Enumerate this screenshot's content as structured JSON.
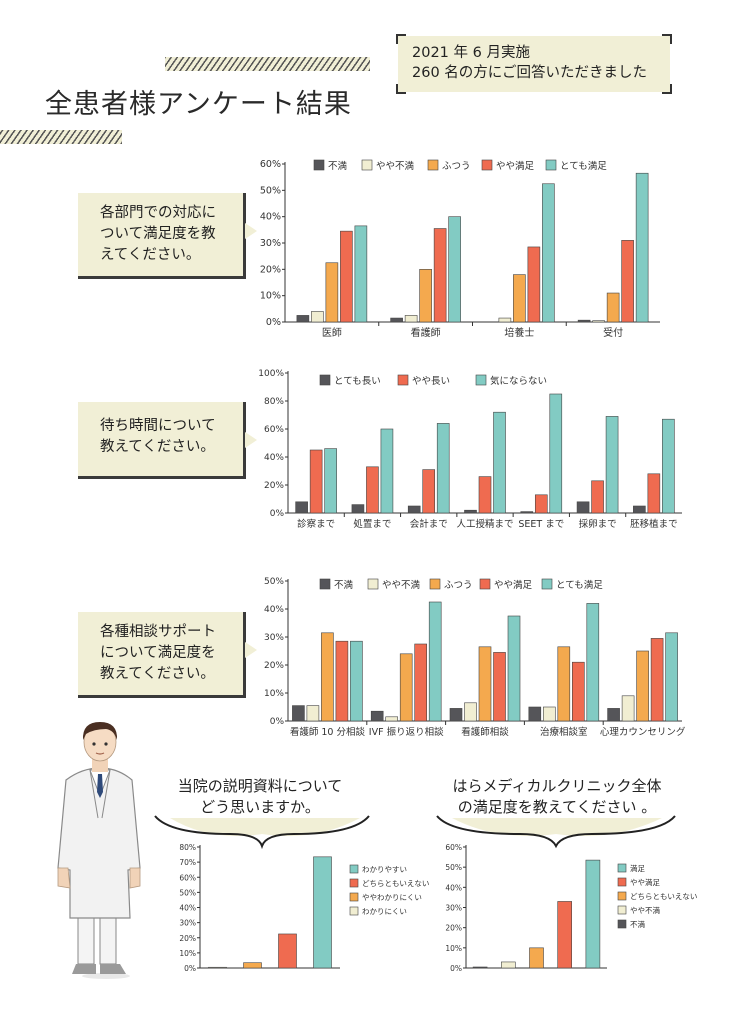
{
  "header": {
    "title": "全患者様アンケート結果",
    "note_line1": "2021 年 6 月実施",
    "note_line2": "260 名の方にご回答いただきました"
  },
  "questions": {
    "q1": [
      "各部門での対応に",
      "ついて満足度を教",
      "えてください。"
    ],
    "q2": [
      "待ち時間について",
      "教えてください。"
    ],
    "q3": [
      "各種相談サポート",
      "について満足度を",
      "教えてください。"
    ],
    "q4": [
      "当院の説明資料について",
      "どう思いますか。"
    ],
    "q5": [
      "はらメディカルクリニック全体",
      "の満足度を教えてください 。"
    ]
  },
  "colors": {
    "dark": "#555559",
    "cream": "#f1eed2",
    "orange": "#f4a94e",
    "red": "#ef6b50",
    "teal": "#82cbc3"
  },
  "icons": [
    "doctor-illustration-icon"
  ],
  "chart_data": [
    {
      "type": "bar",
      "categories": [
        "医師",
        "看護師",
        "培養士",
        "受付"
      ],
      "series": [
        {
          "name": "不満",
          "color": "#555559",
          "values": [
            2.5,
            1.5,
            0,
            0.7
          ]
        },
        {
          "name": "やや不満",
          "color": "#f1eed2",
          "values": [
            4,
            2.5,
            1.5,
            0.5
          ]
        },
        {
          "name": "ふつう",
          "color": "#f4a94e",
          "values": [
            22.5,
            20,
            18,
            11
          ]
        },
        {
          "name": "やや満足",
          "color": "#ef6b50",
          "values": [
            34.5,
            35.5,
            28.5,
            31
          ]
        },
        {
          "name": "とても満足",
          "color": "#82cbc3",
          "values": [
            36.5,
            40,
            52.5,
            56.5
          ]
        }
      ],
      "yticks": [
        "0%",
        "10%",
        "20%",
        "30%",
        "40%",
        "50%",
        "60%"
      ],
      "ylim": [
        0,
        60
      ]
    },
    {
      "type": "bar",
      "categories": [
        "診察まで",
        "処置まで",
        "会計まで",
        "人工授精まで",
        "SEET まで",
        "採卵まで",
        "胚移植まで"
      ],
      "series": [
        {
          "name": "とても長い",
          "color": "#555559",
          "values": [
            8,
            6,
            5,
            2,
            1,
            8,
            5
          ]
        },
        {
          "name": "やや長い",
          "color": "#ef6b50",
          "values": [
            45,
            33,
            31,
            26,
            13,
            23,
            28
          ]
        },
        {
          "name": "気にならない",
          "color": "#82cbc3",
          "values": [
            46,
            60,
            64,
            72,
            85,
            69,
            67
          ]
        }
      ],
      "yticks": [
        "0%",
        "20%",
        "40%",
        "60%",
        "80%",
        "100%"
      ],
      "ylim": [
        0,
        100
      ]
    },
    {
      "type": "bar",
      "categories": [
        "看護師 10 分相談",
        "IVF 振り返り相談",
        "看護師相談",
        "治療相談室",
        "心理カウンセリング"
      ],
      "series": [
        {
          "name": "不満",
          "color": "#555559",
          "values": [
            5.5,
            3.5,
            4.5,
            5,
            4.5
          ]
        },
        {
          "name": "やや不満",
          "color": "#f1eed2",
          "values": [
            5.5,
            1.5,
            6.5,
            5,
            9
          ]
        },
        {
          "name": "ふつう",
          "color": "#f4a94e",
          "values": [
            31.5,
            24,
            26.5,
            26.5,
            25
          ]
        },
        {
          "name": "やや満足",
          "color": "#ef6b50",
          "values": [
            28.5,
            27.5,
            24.5,
            21,
            29.5
          ]
        },
        {
          "name": "とても満足",
          "color": "#82cbc3",
          "values": [
            28.5,
            42.5,
            37.5,
            42,
            31.5
          ]
        }
      ],
      "yticks": [
        "0%",
        "10%",
        "20%",
        "30%",
        "40%",
        "50%"
      ],
      "ylim": [
        0,
        50
      ]
    },
    {
      "type": "bar",
      "categories": [
        "わかりにくい",
        "ややわかりにくい",
        "どちらともいえない",
        "わかりやすい"
      ],
      "series": [
        {
          "name": "わかりにくい",
          "color": "#f1eed2",
          "values": [
            0.5,
            0,
            0,
            0
          ]
        },
        {
          "name": "ややわかりにくい",
          "color": "#f4a94e",
          "values": [
            0,
            3.5,
            0,
            0
          ]
        },
        {
          "name": "どちらともいえない",
          "color": "#ef6b50",
          "values": [
            0,
            0,
            22.5,
            0
          ]
        },
        {
          "name": "わかりやすい",
          "color": "#82cbc3",
          "values": [
            0,
            0,
            0,
            73.5
          ]
        }
      ],
      "legend_order": [
        "わかりやすい",
        "どちらともいえない",
        "ややわかりにくい",
        "わかりにくい"
      ],
      "yticks": [
        "0%",
        "10%",
        "20%",
        "30%",
        "40%",
        "50%",
        "60%",
        "70%",
        "80%"
      ],
      "ylim": [
        0,
        80
      ]
    },
    {
      "type": "bar",
      "categories": [
        "不満",
        "やや不満",
        "どちらともいえない",
        "やや満足",
        "満足"
      ],
      "series": [
        {
          "name": "不満",
          "color": "#555559",
          "values": [
            0.5,
            0,
            0,
            0,
            0
          ]
        },
        {
          "name": "やや不満",
          "color": "#f1eed2",
          "values": [
            0,
            3,
            0,
            0,
            0
          ]
        },
        {
          "name": "どちらともいえない",
          "color": "#f4a94e",
          "values": [
            0,
            0,
            10,
            0,
            0
          ]
        },
        {
          "name": "やや満足",
          "color": "#ef6b50",
          "values": [
            0,
            0,
            0,
            33,
            0
          ]
        },
        {
          "name": "満足",
          "color": "#82cbc3",
          "values": [
            0,
            0,
            0,
            0,
            53.5
          ]
        }
      ],
      "legend_order": [
        "満足",
        "やや満足",
        "どちらともいえない",
        "やや不満",
        "不満"
      ],
      "yticks": [
        "0%",
        "10%",
        "20%",
        "30%",
        "40%",
        "50%",
        "60%"
      ],
      "ylim": [
        0,
        60
      ]
    }
  ]
}
